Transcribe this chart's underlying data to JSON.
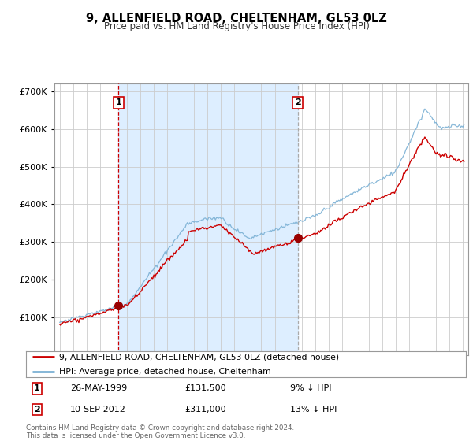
{
  "title": "9, ALLENFIELD ROAD, CHELTENHAM, GL53 0LZ",
  "subtitle": "Price paid vs. HM Land Registry's House Price Index (HPI)",
  "legend_line1": "9, ALLENFIELD ROAD, CHELTENHAM, GL53 0LZ (detached house)",
  "legend_line2": "HPI: Average price, detached house, Cheltenham",
  "table_rows": [
    {
      "num": "1",
      "date": "26-MAY-1999",
      "price": "£131,500",
      "change": "9% ↓ HPI"
    },
    {
      "num": "2",
      "date": "10-SEP-2012",
      "price": "£311,000",
      "change": "13% ↓ HPI"
    }
  ],
  "footnote": "Contains HM Land Registry data © Crown copyright and database right 2024.\nThis data is licensed under the Open Government Licence v3.0.",
  "sale1_year": 1999.38,
  "sale1_price": 131500,
  "sale2_year": 2012.7,
  "sale2_price": 311000,
  "hpi_color": "#7ab0d4",
  "property_color": "#cc0000",
  "vline1_color": "#cc0000",
  "vline2_color": "#aaaaaa",
  "marker_color": "#990000",
  "shading_color": "#ddeeff",
  "background_color": "#ffffff",
  "grid_color": "#cccccc",
  "ylim": [
    0,
    720000
  ],
  "xlim_start": 1994.6,
  "xlim_end": 2025.4
}
